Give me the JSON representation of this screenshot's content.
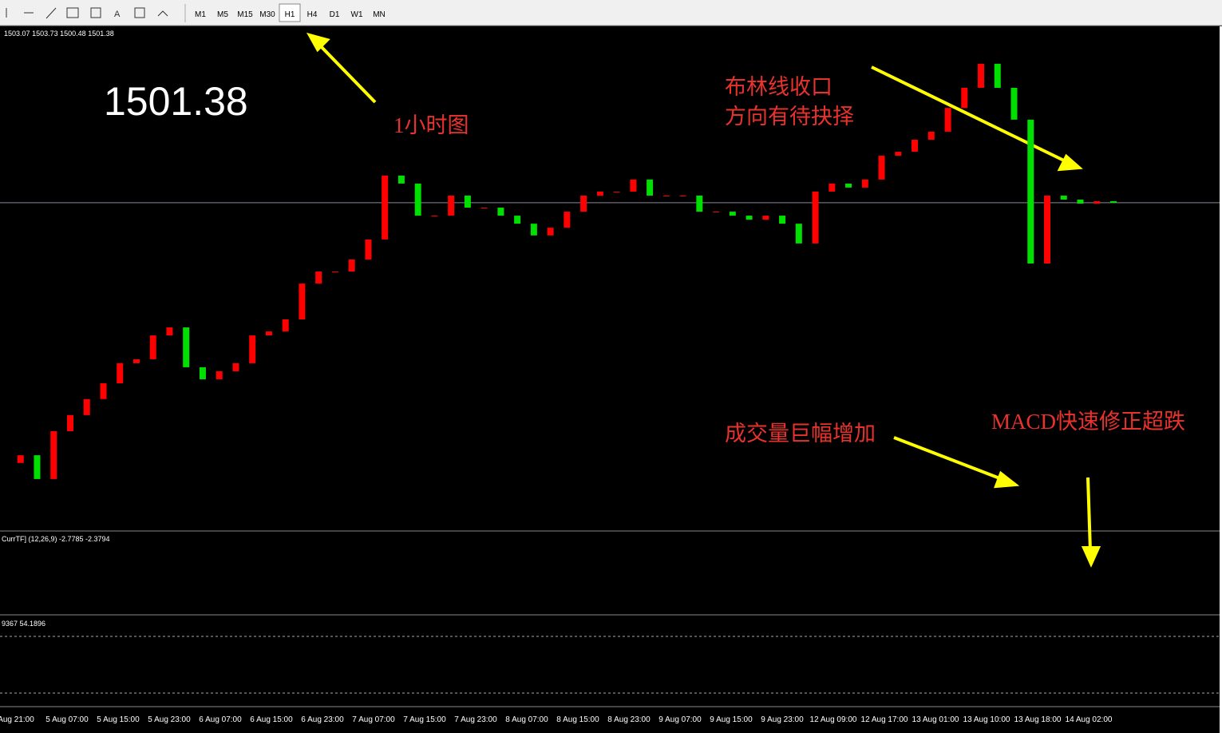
{
  "toolbar": {
    "timeframes": [
      "M1",
      "M5",
      "M15",
      "M30",
      "H1",
      "H4",
      "D1",
      "W1",
      "MN"
    ]
  },
  "chart_data": {
    "type": "candlestick",
    "header_ohlc": [
      1503.07,
      1503.73,
      1500.48,
      1501.38
    ],
    "current_price": 1501.38,
    "ylim": [
      1408,
      1558
    ],
    "up_color": "#ff0000",
    "down_color": "#00e000",
    "close": [
      1417.1,
      1419.6,
      1411.9,
      1427.4,
      1432.6,
      1437.8,
      1442.9,
      1449.4,
      1450.7,
      1458.4,
      1461.0,
      1448.1,
      1444.2,
      1446.8,
      1449.4,
      1458.4,
      1459.7,
      1463.6,
      1475.2,
      1479.1,
      1479.1,
      1483.0,
      1489.5,
      1510.2,
      1507.6,
      1497.2,
      1497.2,
      1503.7,
      1499.8,
      1499.8,
      1497.2,
      1494.6,
      1490.8,
      1493.3,
      1498.5,
      1503.7,
      1505.0,
      1505.0,
      1508.9,
      1503.7,
      1503.7,
      1503.7,
      1498.5,
      1498.5,
      1497.2,
      1495.9,
      1497.2,
      1494.6,
      1488.2,
      1505.0,
      1507.6,
      1506.3,
      1508.9,
      1516.6,
      1517.9,
      1521.8,
      1524.4,
      1532.1,
      1538.6,
      1546.4,
      1538.6,
      1528.3,
      1481.7,
      1503.7,
      1502.4,
      1501.1,
      1501.9,
      1501.38
    ],
    "time_labels": [
      "Aug 21:00",
      "5 Aug 07:00",
      "5 Aug 15:00",
      "5 Aug 23:00",
      "6 Aug 07:00",
      "6 Aug 15:00",
      "6 Aug 23:00",
      "7 Aug 07:00",
      "7 Aug 15:00",
      "7 Aug 23:00",
      "8 Aug 07:00",
      "8 Aug 15:00",
      "8 Aug 23:00",
      "9 Aug 07:00",
      "9 Aug 15:00",
      "9 Aug 23:00",
      "12 Aug 09:00",
      "12 Aug 17:00",
      "13 Aug 01:00",
      "13 Aug 10:00",
      "13 Aug 18:00",
      "14 Aug 02:00"
    ],
    "macd_header": "CurrTF] (12,26,9) -2.7785 -2.3794",
    "stoch_header": "9367 54.1896"
  },
  "annotations": {
    "timeframe": "1小时图",
    "bollinger_1": "布林线收口",
    "bollinger_2": "方向有待抉择",
    "volume": "成交量巨幅增加",
    "macd": "MACD快速修正超跌"
  }
}
